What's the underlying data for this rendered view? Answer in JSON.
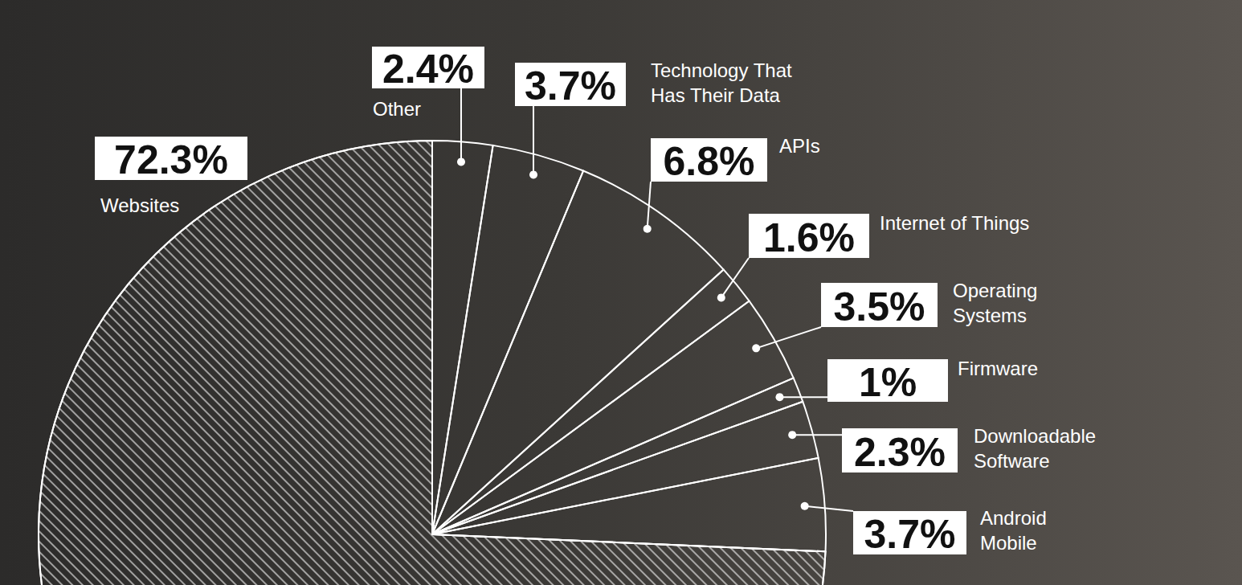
{
  "chart_data": {
    "type": "pie",
    "categories": [
      "Other",
      "Technology That Has Their Data",
      "APIs",
      "Internet of Things",
      "Operating Systems",
      "Firmware",
      "Downloadable Software",
      "Android Mobile",
      "Websites"
    ],
    "values": [
      2.4,
      3.7,
      6.8,
      1.6,
      3.5,
      1,
      2.3,
      3.7,
      72.3
    ],
    "value_labels": [
      "2.4%",
      "3.7%",
      "6.8%",
      "1.6%",
      "3.5%",
      "1%",
      "2.3%",
      "3.7%",
      "72.3%"
    ],
    "data_labels": true,
    "color": "#ffffff"
  }
}
